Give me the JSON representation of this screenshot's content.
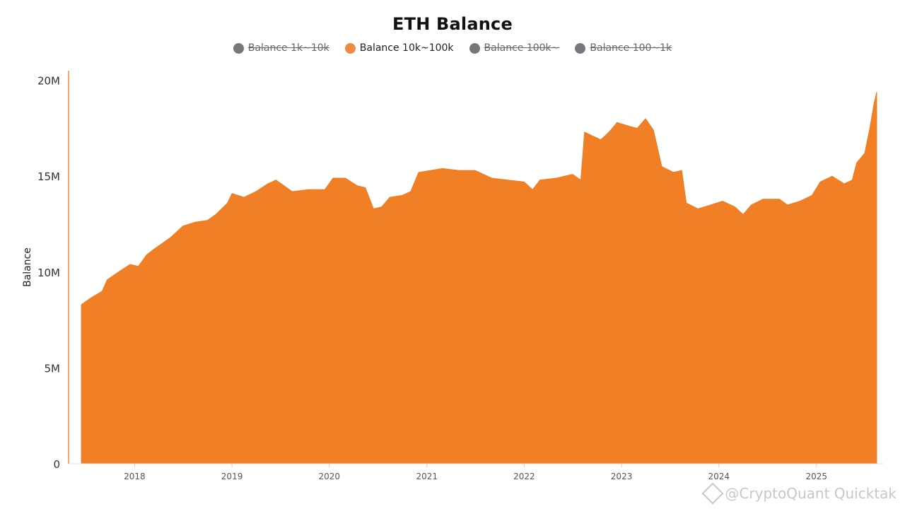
{
  "chart_data": {
    "type": "area",
    "title": "ETH Balance",
    "ylabel": "Balance",
    "xlabel": "",
    "ylim": [
      0,
      20500000
    ],
    "y_ticks": [
      {
        "value": 0,
        "label": "0"
      },
      {
        "value": 5000000,
        "label": "5M"
      },
      {
        "value": 10000000,
        "label": "10M"
      },
      {
        "value": 15000000,
        "label": "15M"
      },
      {
        "value": 20000000,
        "label": "20M"
      }
    ],
    "x_range": [
      "2017-06-15",
      "2025-08-15"
    ],
    "x_ticks": [
      {
        "value": "2018-01-01",
        "label": "2018"
      },
      {
        "value": "2019-01-01",
        "label": "2019"
      },
      {
        "value": "2020-01-01",
        "label": "2020"
      },
      {
        "value": "2021-01-01",
        "label": "2021"
      },
      {
        "value": "2022-01-01",
        "label": "2022"
      },
      {
        "value": "2023-01-01",
        "label": "2023"
      },
      {
        "value": "2024-01-01",
        "label": "2024"
      },
      {
        "value": "2025-01-01",
        "label": "2025"
      }
    ],
    "legend": [
      {
        "name": "Balance 1k~10k",
        "color": "#76777d",
        "enabled": false
      },
      {
        "name": "Balance 10k~100k",
        "color": "#f08a42",
        "enabled": true
      },
      {
        "name": "Balance 100k~",
        "color": "#76777d",
        "enabled": false
      },
      {
        "name": "Balance 100~1k",
        "color": "#76777d",
        "enabled": false
      }
    ],
    "legend_position": "top-center",
    "grid": false,
    "series": [
      {
        "name": "Balance 10k~100k",
        "color": "#f07f25",
        "points": [
          [
            "2017-06-15",
            8300000
          ],
          [
            "2017-07-15",
            8600000
          ],
          [
            "2017-09-01",
            9000000
          ],
          [
            "2017-09-20",
            9600000
          ],
          [
            "2017-11-01",
            10000000
          ],
          [
            "2017-12-15",
            10400000
          ],
          [
            "2018-01-15",
            10300000
          ],
          [
            "2018-02-15",
            10900000
          ],
          [
            "2018-03-15",
            11200000
          ],
          [
            "2018-04-15",
            11500000
          ],
          [
            "2018-05-15",
            11800000
          ],
          [
            "2018-07-01",
            12400000
          ],
          [
            "2018-08-15",
            12600000
          ],
          [
            "2018-10-01",
            12700000
          ],
          [
            "2018-11-01",
            13000000
          ],
          [
            "2018-12-15",
            13600000
          ],
          [
            "2019-01-01",
            14100000
          ],
          [
            "2019-02-15",
            13900000
          ],
          [
            "2019-04-01",
            14200000
          ],
          [
            "2019-05-15",
            14600000
          ],
          [
            "2019-06-15",
            14800000
          ],
          [
            "2019-08-15",
            14200000
          ],
          [
            "2019-10-15",
            14300000
          ],
          [
            "2019-12-15",
            14300000
          ],
          [
            "2020-01-15",
            14900000
          ],
          [
            "2020-03-01",
            14900000
          ],
          [
            "2020-04-15",
            14500000
          ],
          [
            "2020-05-15",
            14400000
          ],
          [
            "2020-06-15",
            13300000
          ],
          [
            "2020-07-15",
            13400000
          ],
          [
            "2020-08-15",
            13900000
          ],
          [
            "2020-10-01",
            14000000
          ],
          [
            "2020-11-01",
            14200000
          ],
          [
            "2020-12-01",
            15200000
          ],
          [
            "2021-01-15",
            15300000
          ],
          [
            "2021-03-01",
            15400000
          ],
          [
            "2021-05-01",
            15300000
          ],
          [
            "2021-07-01",
            15300000
          ],
          [
            "2021-09-01",
            14900000
          ],
          [
            "2021-11-01",
            14800000
          ],
          [
            "2022-01-01",
            14700000
          ],
          [
            "2022-02-01",
            14300000
          ],
          [
            "2022-03-01",
            14800000
          ],
          [
            "2022-05-01",
            14900000
          ],
          [
            "2022-07-01",
            15100000
          ],
          [
            "2022-08-01",
            14800000
          ],
          [
            "2022-08-15",
            17300000
          ],
          [
            "2022-10-15",
            16900000
          ],
          [
            "2022-11-15",
            17300000
          ],
          [
            "2022-12-15",
            17800000
          ],
          [
            "2023-02-01",
            17600000
          ],
          [
            "2023-03-01",
            17500000
          ],
          [
            "2023-04-01",
            18000000
          ],
          [
            "2023-05-01",
            17400000
          ],
          [
            "2023-06-01",
            15500000
          ],
          [
            "2023-07-15",
            15200000
          ],
          [
            "2023-08-15",
            15300000
          ],
          [
            "2023-09-01",
            13600000
          ],
          [
            "2023-10-15",
            13300000
          ],
          [
            "2023-12-01",
            13500000
          ],
          [
            "2024-01-15",
            13700000
          ],
          [
            "2024-03-01",
            13400000
          ],
          [
            "2024-04-01",
            13000000
          ],
          [
            "2024-05-01",
            13500000
          ],
          [
            "2024-06-15",
            13800000
          ],
          [
            "2024-08-15",
            13800000
          ],
          [
            "2024-09-15",
            13500000
          ],
          [
            "2024-11-01",
            13700000
          ],
          [
            "2024-12-15",
            14000000
          ],
          [
            "2025-01-15",
            14700000
          ],
          [
            "2025-03-01",
            15000000
          ],
          [
            "2025-04-15",
            14600000
          ],
          [
            "2025-05-15",
            14800000
          ],
          [
            "2025-06-01",
            15700000
          ],
          [
            "2025-07-01",
            16200000
          ],
          [
            "2025-07-20",
            17500000
          ],
          [
            "2025-08-05",
            18800000
          ],
          [
            "2025-08-15",
            19400000
          ]
        ]
      }
    ]
  },
  "watermark": {
    "text": "@CryptoQuant Quicktak"
  }
}
